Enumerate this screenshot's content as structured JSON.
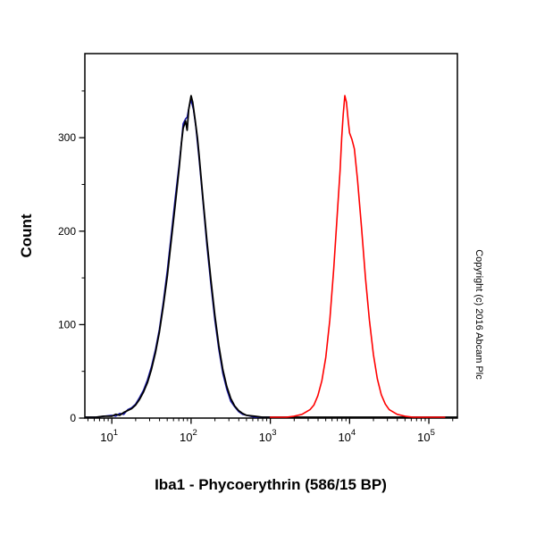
{
  "chart_data": {
    "type": "line",
    "subtype": "flow-cytometry-histogram",
    "title": "",
    "xlabel": "Iba1 - Phycoerythrin (586/15 BP)",
    "ylabel": "Count",
    "copyright": "Copyright (c) 2016 Abcam Plc",
    "x_scale": "log10",
    "xlim_log10": [
      0.66,
      5.36
    ],
    "ylim": [
      0,
      390
    ],
    "y_ticks": [
      0,
      100,
      200,
      300
    ],
    "y_minor_step": 50,
    "x_tick_base": "10",
    "x_tick_exponents": [
      1,
      2,
      3,
      4,
      5
    ],
    "grid": false,
    "legend": "none",
    "background": "#ffffff",
    "axis_color": "#000000",
    "series": [
      {
        "name": "isotype-control-blue",
        "color": "#1a1aae",
        "stroke_width": 1.6,
        "points": [
          [
            0.66,
            1
          ],
          [
            0.8,
            1
          ],
          [
            0.9,
            2
          ],
          [
            1.0,
            3
          ],
          [
            1.05,
            2
          ],
          [
            1.1,
            5
          ],
          [
            1.15,
            4
          ],
          [
            1.2,
            9
          ],
          [
            1.25,
            11
          ],
          [
            1.3,
            15
          ],
          [
            1.35,
            22
          ],
          [
            1.4,
            30
          ],
          [
            1.45,
            41
          ],
          [
            1.5,
            55
          ],
          [
            1.55,
            73
          ],
          [
            1.6,
            95
          ],
          [
            1.65,
            124
          ],
          [
            1.7,
            158
          ],
          [
            1.75,
            196
          ],
          [
            1.8,
            235
          ],
          [
            1.85,
            272
          ],
          [
            1.88,
            296
          ],
          [
            1.9,
            315
          ],
          [
            1.93,
            320
          ],
          [
            1.95,
            322
          ],
          [
            1.98,
            335
          ],
          [
            2.0,
            340
          ],
          [
            2.03,
            330
          ],
          [
            2.06,
            312
          ],
          [
            2.1,
            278
          ],
          [
            2.15,
            232
          ],
          [
            2.2,
            185
          ],
          [
            2.25,
            143
          ],
          [
            2.3,
            105
          ],
          [
            2.35,
            74
          ],
          [
            2.4,
            48
          ],
          [
            2.45,
            31
          ],
          [
            2.5,
            18
          ],
          [
            2.55,
            12
          ],
          [
            2.6,
            7
          ],
          [
            2.65,
            4
          ],
          [
            2.7,
            3
          ],
          [
            2.8,
            1
          ],
          [
            2.9,
            1
          ],
          [
            3.0,
            1
          ]
        ]
      },
      {
        "name": "unlabelled-control-black",
        "color": "#000000",
        "stroke_width": 1.8,
        "points": [
          [
            0.66,
            1
          ],
          [
            0.8,
            1
          ],
          [
            0.9,
            2
          ],
          [
            1.0,
            2
          ],
          [
            1.05,
            4
          ],
          [
            1.1,
            3
          ],
          [
            1.15,
            6
          ],
          [
            1.2,
            8
          ],
          [
            1.25,
            10
          ],
          [
            1.3,
            14
          ],
          [
            1.35,
            20
          ],
          [
            1.4,
            28
          ],
          [
            1.45,
            38
          ],
          [
            1.5,
            52
          ],
          [
            1.55,
            70
          ],
          [
            1.6,
            92
          ],
          [
            1.65,
            120
          ],
          [
            1.7,
            152
          ],
          [
            1.75,
            190
          ],
          [
            1.8,
            228
          ],
          [
            1.85,
            268
          ],
          [
            1.88,
            295
          ],
          [
            1.9,
            310
          ],
          [
            1.93,
            318
          ],
          [
            1.95,
            308
          ],
          [
            1.97,
            330
          ],
          [
            2.0,
            345
          ],
          [
            2.02,
            338
          ],
          [
            2.05,
            320
          ],
          [
            2.08,
            300
          ],
          [
            2.1,
            282
          ],
          [
            2.15,
            235
          ],
          [
            2.2,
            190
          ],
          [
            2.25,
            148
          ],
          [
            2.3,
            110
          ],
          [
            2.35,
            78
          ],
          [
            2.4,
            52
          ],
          [
            2.45,
            34
          ],
          [
            2.5,
            21
          ],
          [
            2.55,
            13
          ],
          [
            2.6,
            8
          ],
          [
            2.65,
            5
          ],
          [
            2.7,
            3
          ],
          [
            2.8,
            2
          ],
          [
            2.9,
            1
          ],
          [
            3.2,
            1
          ],
          [
            3.6,
            1
          ],
          [
            4.0,
            1
          ],
          [
            4.4,
            1
          ],
          [
            4.8,
            1
          ],
          [
            5.36,
            1
          ]
        ]
      },
      {
        "name": "Iba1-PE-red",
        "color": "#ff0000",
        "stroke_width": 1.6,
        "points": [
          [
            3.0,
            1
          ],
          [
            3.2,
            1
          ],
          [
            3.3,
            2
          ],
          [
            3.4,
            4
          ],
          [
            3.5,
            9
          ],
          [
            3.55,
            14
          ],
          [
            3.6,
            24
          ],
          [
            3.65,
            40
          ],
          [
            3.7,
            65
          ],
          [
            3.75,
            105
          ],
          [
            3.8,
            160
          ],
          [
            3.85,
            225
          ],
          [
            3.88,
            265
          ],
          [
            3.9,
            300
          ],
          [
            3.92,
            325
          ],
          [
            3.94,
            345
          ],
          [
            3.96,
            338
          ],
          [
            3.98,
            320
          ],
          [
            4.0,
            305
          ],
          [
            4.03,
            298
          ],
          [
            4.06,
            288
          ],
          [
            4.1,
            255
          ],
          [
            4.15,
            205
          ],
          [
            4.2,
            150
          ],
          [
            4.25,
            105
          ],
          [
            4.3,
            68
          ],
          [
            4.35,
            42
          ],
          [
            4.4,
            25
          ],
          [
            4.45,
            15
          ],
          [
            4.5,
            9
          ],
          [
            4.6,
            4
          ],
          [
            4.7,
            2
          ],
          [
            4.8,
            1
          ],
          [
            5.0,
            1
          ],
          [
            5.2,
            1
          ]
        ]
      }
    ]
  }
}
